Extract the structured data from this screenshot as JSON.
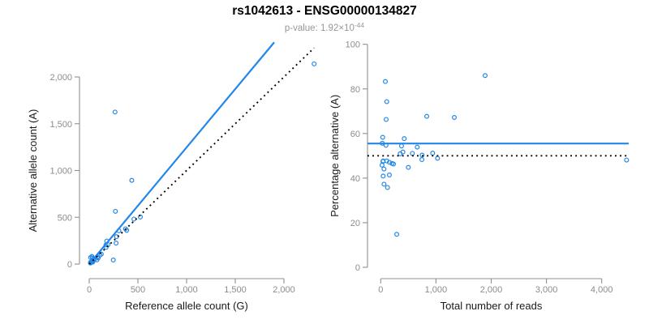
{
  "header": {
    "title": "rs1042613 - ENSG00000134827",
    "pvalue_prefix": "p-value: 1.92×10",
    "pvalue_exponent": "-44"
  },
  "colors": {
    "accent": "#2287e8",
    "axis_line": "#909090",
    "tick_text": "#8c8c8c",
    "axis_title_text": "#1a1a1a",
    "subtitle_text": "#979797"
  },
  "chart_data": [
    {
      "id": "allele-count-scatter",
      "type": "scatter",
      "xlabel": "Reference allele count (G)",
      "ylabel": "Alternative allele count (A)",
      "xlim": [
        0,
        2400
      ],
      "ylim": [
        0,
        2390
      ],
      "grid": false,
      "legend": "none",
      "xticks": [
        {
          "v": 0,
          "label": "0"
        },
        {
          "v": 500,
          "label": "500"
        },
        {
          "v": 1000,
          "label": "1,000"
        },
        {
          "v": 1500,
          "label": "1,500"
        },
        {
          "v": 2000,
          "label": "2,000"
        }
      ],
      "yticks": [
        {
          "v": 0,
          "label": "0"
        },
        {
          "v": 500,
          "label": "500"
        },
        {
          "v": 1000,
          "label": "1,000"
        },
        {
          "v": 1500,
          "label": "1,500"
        },
        {
          "v": 2000,
          "label": "2,000"
        }
      ],
      "points": [
        [
          14,
          70
        ],
        [
          265,
          1625
        ],
        [
          28,
          81
        ],
        [
          33,
          65
        ],
        [
          269,
          564
        ],
        [
          437,
          895
        ],
        [
          15,
          21
        ],
        [
          180,
          246
        ],
        [
          12,
          15
        ],
        [
          43,
          52
        ],
        [
          172,
          205
        ],
        [
          305,
          356
        ],
        [
          194,
          208
        ],
        [
          173,
          179
        ],
        [
          280,
          293
        ],
        [
          459,
          481
        ],
        [
          372,
          377
        ],
        [
          385,
          360
        ],
        [
          525,
          503
        ],
        [
          2310,
          2140
        ],
        [
          23,
          21
        ],
        [
          21,
          19
        ],
        [
          57,
          52
        ],
        [
          83,
          74
        ],
        [
          110,
          96
        ],
        [
          124,
          107
        ],
        [
          13,
          11
        ],
        [
          33,
          26
        ],
        [
          276,
          224
        ],
        [
          26,
          18
        ],
        [
          92,
          65
        ],
        [
          37,
          22
        ],
        [
          79,
          44
        ],
        [
          247,
          43
        ]
      ],
      "lines": [
        {
          "name": "fit-line",
          "style": "solid",
          "pts": [
            [
              0,
              0
            ],
            [
              1900,
              2370
            ]
          ]
        },
        {
          "name": "identity-line",
          "style": "dotted",
          "pts": [
            [
              0,
              0
            ],
            [
              2310,
              2310
            ]
          ]
        }
      ]
    },
    {
      "id": "percentage-vs-reads-scatter",
      "type": "scatter",
      "xlabel": "Total number of reads",
      "ylabel": "Percentage alternative (A)",
      "xlim": [
        0,
        4480
      ],
      "ylim": [
        0,
        100
      ],
      "grid": false,
      "legend": "none",
      "xticks": [
        {
          "v": 0,
          "label": "0"
        },
        {
          "v": 1000,
          "label": "1,000"
        },
        {
          "v": 2000,
          "label": "2,000"
        },
        {
          "v": 3000,
          "label": "3,000"
        },
        {
          "v": 4000,
          "label": "4,000"
        }
      ],
      "yticks": [
        {
          "v": 0,
          "label": "0"
        },
        {
          "v": 20,
          "label": "20"
        },
        {
          "v": 40,
          "label": "40"
        },
        {
          "v": 60,
          "label": "60"
        },
        {
          "v": 80,
          "label": "80"
        },
        {
          "v": 100,
          "label": "100"
        }
      ],
      "points": [
        [
          84,
          83.3
        ],
        [
          1890,
          86.0
        ],
        [
          109,
          74.3
        ],
        [
          98,
          66.3
        ],
        [
          833,
          67.7
        ],
        [
          1332,
          67.2
        ],
        [
          36,
          58.3
        ],
        [
          426,
          57.7
        ],
        [
          27,
          55.6
        ],
        [
          95,
          54.7
        ],
        [
          377,
          54.4
        ],
        [
          661,
          53.9
        ],
        [
          402,
          51.7
        ],
        [
          352,
          50.9
        ],
        [
          573,
          51.1
        ],
        [
          940,
          51.2
        ],
        [
          749,
          50.3
        ],
        [
          745,
          48.3
        ],
        [
          1028,
          48.9
        ],
        [
          4450,
          48.1
        ],
        [
          44,
          47.7
        ],
        [
          40,
          47.5
        ],
        [
          109,
          47.7
        ],
        [
          157,
          47.1
        ],
        [
          206,
          46.6
        ],
        [
          231,
          46.3
        ],
        [
          24,
          45.8
        ],
        [
          59,
          44.1
        ],
        [
          500,
          44.8
        ],
        [
          44,
          40.9
        ],
        [
          157,
          41.4
        ],
        [
          59,
          37.3
        ],
        [
          123,
          35.8
        ],
        [
          290,
          14.8
        ]
      ],
      "lines": [
        {
          "name": "mean-line",
          "style": "solid",
          "y": 55.5
        },
        {
          "name": "expected-line",
          "style": "dotted",
          "y": 50
        }
      ]
    }
  ]
}
